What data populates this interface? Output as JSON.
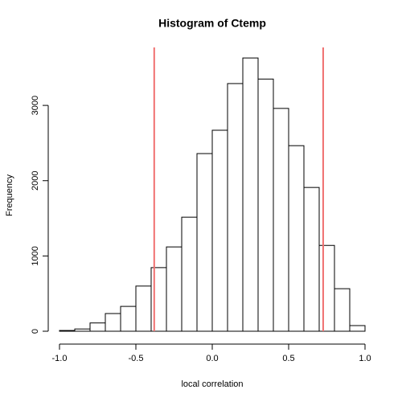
{
  "chart_data": {
    "type": "histogram",
    "title": "Histogram of Ctemp",
    "x_label": "local correlation",
    "y_label": "Frequency",
    "bins": [
      -1.0,
      -0.9,
      -0.8,
      -0.7,
      -0.6,
      -0.5,
      -0.4,
      -0.3,
      -0.2,
      -0.1,
      0,
      0.1,
      0.2,
      0.3,
      0.4,
      0.5,
      0.6,
      0.7,
      0.8,
      0.9,
      1.0
    ],
    "values": [
      10,
      30,
      110,
      235,
      330,
      600,
      845,
      1120,
      1515,
      2360,
      2670,
      3290,
      3630,
      3350,
      2960,
      2465,
      1910,
      1140,
      565,
      75
    ],
    "color": "#ffffff",
    "xlim": [
      -1,
      1
    ],
    "ylim": [
      0,
      3770
    ],
    "xticks": [
      {
        "value": -1,
        "label": "-1.0"
      },
      -0.5,
      {
        "value": 0,
        "label": "0.0"
      },
      0.5,
      {
        "value": 1,
        "label": "1.0"
      }
    ],
    "yticks": [
      0,
      1000,
      2000,
      3000
    ],
    "vlines": [
      -0.38,
      0.726
    ],
    "vline_color": "#f07070"
  }
}
